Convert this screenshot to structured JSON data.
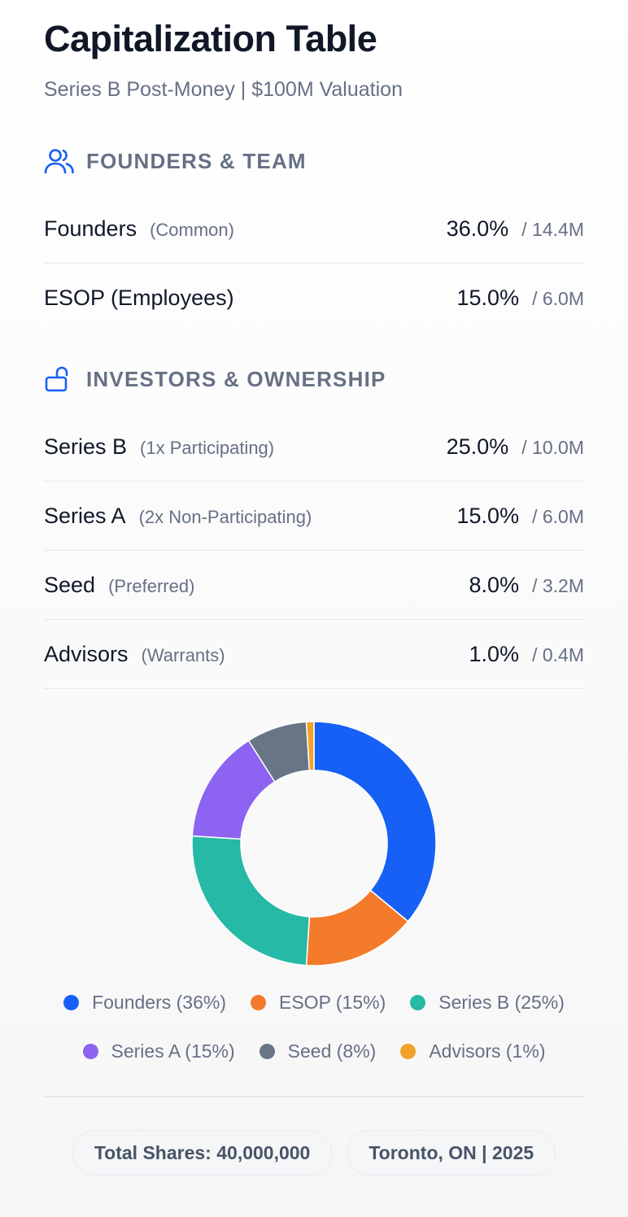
{
  "header": {
    "title": "Capitalization Table",
    "subtitle": "Series B Post-Money | $100M Valuation"
  },
  "sections": {
    "team": {
      "label": "FOUNDERS & TEAM",
      "icon": "users-icon",
      "rows": [
        {
          "name": "Founders",
          "sub": "(Common)",
          "pct": "36.0%",
          "shares": "/ 14.4M"
        },
        {
          "name": "ESOP (Employees)",
          "sub": "",
          "pct": "15.0%",
          "shares": "/ 6.0M"
        }
      ]
    },
    "investors": {
      "label": "INVESTORS & OWNERSHIP",
      "icon": "unlock-icon",
      "rows": [
        {
          "name": "Series B",
          "sub": "(1x Participating)",
          "pct": "25.0%",
          "shares": "/ 10.0M"
        },
        {
          "name": "Series A",
          "sub": "(2x Non-Participating)",
          "pct": "15.0%",
          "shares": "/ 6.0M"
        },
        {
          "name": "Seed",
          "sub": "(Preferred)",
          "pct": "8.0%",
          "shares": "/ 3.2M"
        },
        {
          "name": "Advisors",
          "sub": "(Warrants)",
          "pct": "1.0%",
          "shares": "/ 0.4M"
        }
      ]
    }
  },
  "chart_data": {
    "type": "pie",
    "categories": [
      "Founders",
      "ESOP",
      "Series B",
      "Series A",
      "Seed",
      "Advisors"
    ],
    "values": [
      36,
      15,
      25,
      15,
      8,
      1
    ],
    "colors": [
      "#1660f5",
      "#f47a2c",
      "#26b9a5",
      "#8d63f2",
      "#687587",
      "#f2a229"
    ],
    "legend": [
      "Founders (36%)",
      "ESOP (15%)",
      "Series B (25%)",
      "Series A (15%)",
      "Seed (8%)",
      "Advisors (1%)"
    ],
    "donut": true
  },
  "footer": {
    "total_shares": "Total Shares: 40,000,000",
    "location": "Toronto, ON | 2025"
  },
  "colors": {
    "accent": "#1660f5",
    "muted_text": "#667085",
    "primary_text": "#101828"
  }
}
